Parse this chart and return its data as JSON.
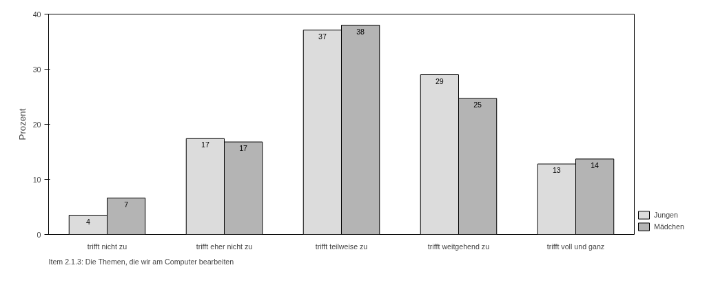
{
  "chart_data": {
    "type": "bar",
    "ylabel": "Prozent",
    "categories": [
      "trifft nicht zu",
      "trifft eher nicht zu",
      "trifft teilweise zu",
      "trifft weitgehend zu",
      "trifft voll und ganz"
    ],
    "series": [
      {
        "name": "Jungen",
        "color": "#dcdcdc",
        "values": [
          3.5,
          17.4,
          37.1,
          29.0,
          12.8
        ],
        "value_labels": [
          "4",
          "17",
          "37",
          "29",
          "13"
        ]
      },
      {
        "name": "Mädchen",
        "color": "#b4b4b4",
        "values": [
          6.6,
          16.8,
          38.0,
          24.7,
          13.7
        ],
        "value_labels": [
          "7",
          "17",
          "38",
          "25",
          "14"
        ]
      }
    ],
    "ylim": [
      0,
      40
    ],
    "yticks": [
      0,
      10,
      20,
      30,
      40
    ],
    "grid": false,
    "legend": "right",
    "annotations": [
      "Item 2.1.3: Die Themen, die wir am Computer bearbeiten"
    ]
  }
}
